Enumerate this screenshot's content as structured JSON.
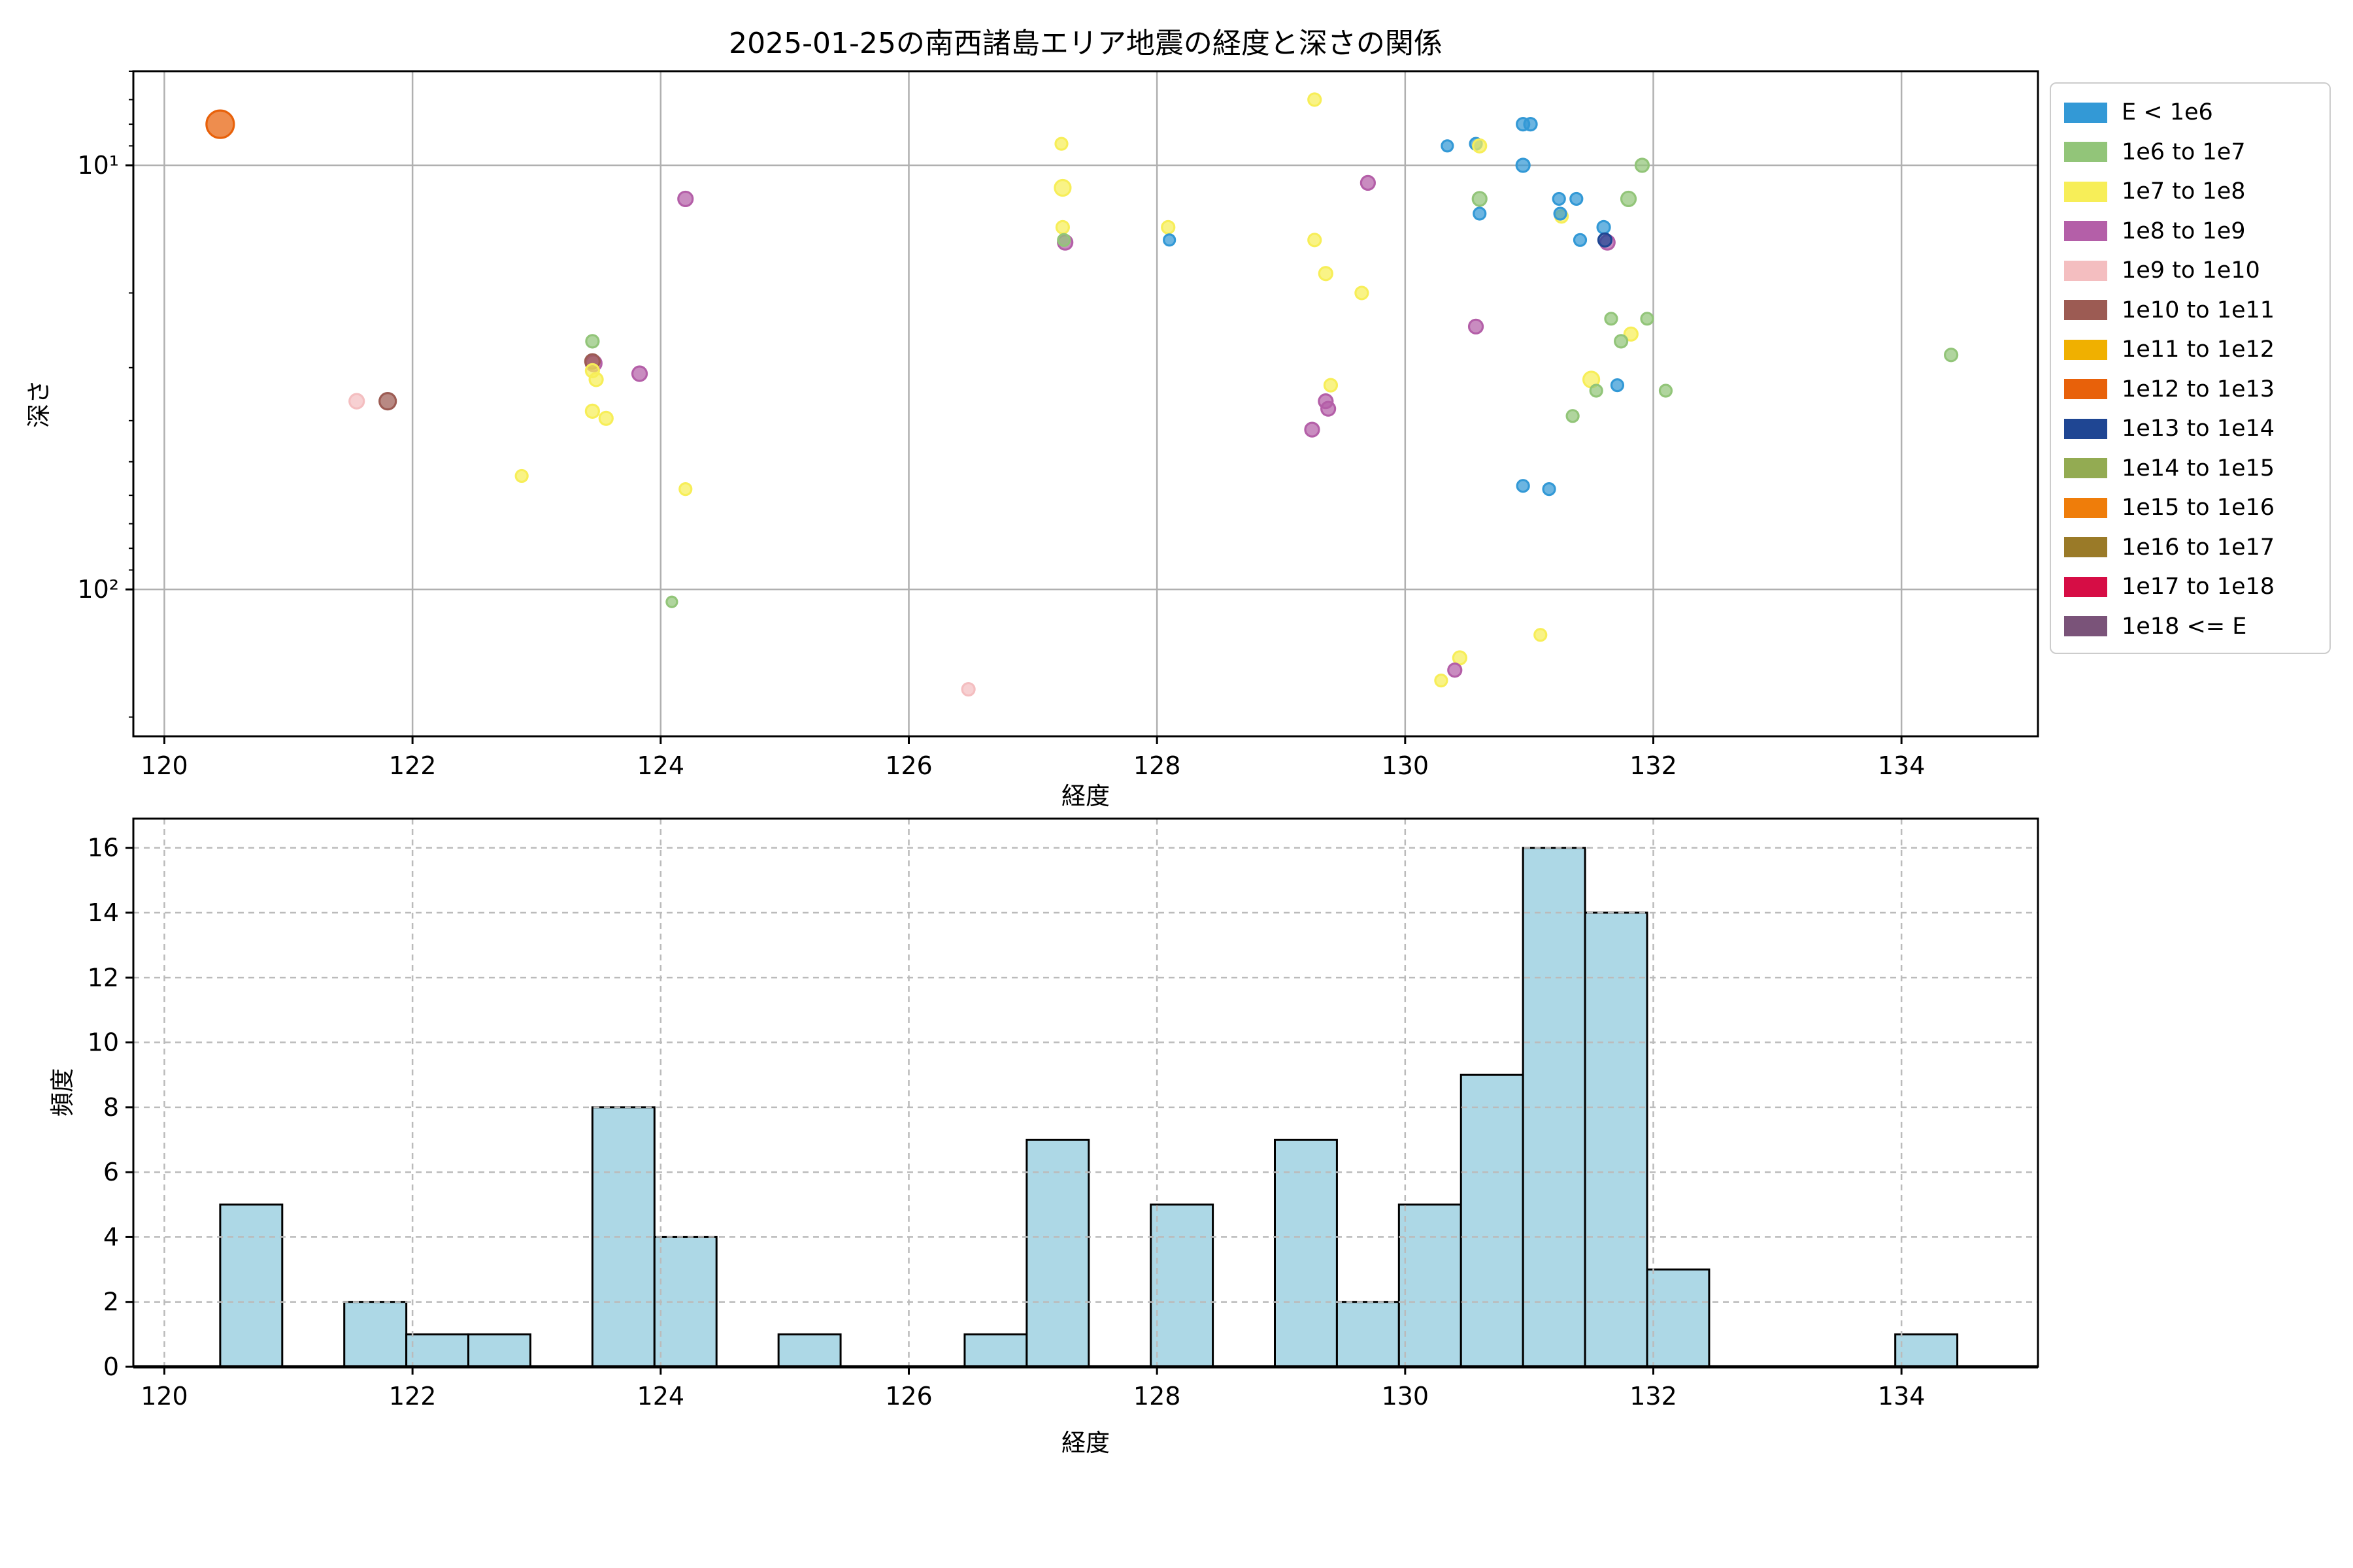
{
  "figure": {
    "title": "2025-01-25の南西諸島エリア地震の経度と深さの関係",
    "background": "#ffffff"
  },
  "legend": {
    "items": [
      {
        "label": "E < 1e6",
        "color": "#3399d6"
      },
      {
        "label": "1e6 to 1e7",
        "color": "#92c579"
      },
      {
        "label": "1e7 to 1e8",
        "color": "#f7ee58"
      },
      {
        "label": "1e8 to 1e9",
        "color": "#b45fa8"
      },
      {
        "label": "1e9 to 1e10",
        "color": "#f4bec0"
      },
      {
        "label": "1e10 to 1e11",
        "color": "#9c5b53"
      },
      {
        "label": "1e11 to 1e12",
        "color": "#f0b000"
      },
      {
        "label": "1e12 to 1e13",
        "color": "#e8610a"
      },
      {
        "label": "1e13 to 1e14",
        "color": "#1f4693"
      },
      {
        "label": "1e14 to 1e15",
        "color": "#93ab52"
      },
      {
        "label": "1e15 to 1e16",
        "color": "#ef7d0a"
      },
      {
        "label": "1e16 to 1e17",
        "color": "#9a7a28"
      },
      {
        "label": "1e17 to 1e18",
        "color": "#d60d45"
      },
      {
        "label": "1e18 <= E",
        "color": "#7a5379"
      }
    ]
  },
  "chart_data": [
    {
      "type": "scatter",
      "title": "2025-01-25の南西諸島エリア地震の経度と深さの関係",
      "xlabel": "経度",
      "ylabel": "深さ",
      "xlim": [
        119.75,
        135.1
      ],
      "ylim": [
        6.0,
        222
      ],
      "yscale": "log-inverted",
      "grid": "solid",
      "grid_color": "#b0b0b0",
      "xticks": [
        120,
        122,
        124,
        126,
        128,
        130,
        132,
        134
      ],
      "yticks": [
        {
          "v": 10,
          "label": "10¹"
        },
        {
          "v": 100,
          "label": "10²"
        }
      ],
      "yticks_minor": [
        6,
        7,
        8,
        9,
        20,
        30,
        40,
        50,
        60,
        70,
        80,
        90,
        200
      ],
      "point_fill_opacity": 0.72,
      "points": [
        {
          "x": 120.45,
          "y": 8.0,
          "cat": "1e12 to 1e13",
          "r": 21
        },
        {
          "x": 121.55,
          "y": 36,
          "cat": "1e9 to 1e10",
          "r": 11
        },
        {
          "x": 121.8,
          "y": 36,
          "cat": "1e10 to 1e11",
          "r": 12.5
        },
        {
          "x": 122.88,
          "y": 54,
          "cat": "1e7 to 1e8",
          "r": 9
        },
        {
          "x": 123.45,
          "y": 26,
          "cat": "1e6 to 1e7",
          "r": 9.5
        },
        {
          "x": 123.46,
          "y": 29.3,
          "cat": "1e8 to 1e9",
          "r": 12
        },
        {
          "x": 123.45,
          "y": 29,
          "cat": "1e10 to 1e11",
          "r": 11
        },
        {
          "x": 123.45,
          "y": 30.5,
          "cat": "1e7 to 1e8",
          "r": 10
        },
        {
          "x": 123.48,
          "y": 32,
          "cat": "1e7 to 1e8",
          "r": 10
        },
        {
          "x": 123.45,
          "y": 38,
          "cat": "1e7 to 1e8",
          "r": 10
        },
        {
          "x": 123.56,
          "y": 39.5,
          "cat": "1e7 to 1e8",
          "r": 10
        },
        {
          "x": 123.83,
          "y": 31,
          "cat": "1e8 to 1e9",
          "r": 11
        },
        {
          "x": 124.2,
          "y": 12,
          "cat": "1e8 to 1e9",
          "r": 11
        },
        {
          "x": 124.2,
          "y": 58,
          "cat": "1e7 to 1e8",
          "r": 9
        },
        {
          "x": 124.09,
          "y": 107,
          "cat": "1e6 to 1e7",
          "r": 8
        },
        {
          "x": 126.48,
          "y": 172,
          "cat": "1e9 to 1e10",
          "r": 9.5
        },
        {
          "x": 127.23,
          "y": 8.9,
          "cat": "1e7 to 1e8",
          "r": 9
        },
        {
          "x": 127.24,
          "y": 11.3,
          "cat": "1e7 to 1e8",
          "r": 12
        },
        {
          "x": 127.24,
          "y": 14,
          "cat": "1e7 to 1e8",
          "r": 9.5
        },
        {
          "x": 127.26,
          "y": 15.2,
          "cat": "1e8 to 1e9",
          "r": 11
        },
        {
          "x": 127.25,
          "y": 15,
          "cat": "1e6 to 1e7",
          "r": 9
        },
        {
          "x": 128.09,
          "y": 14,
          "cat": "1e7 to 1e8",
          "r": 9.5
        },
        {
          "x": 128.1,
          "y": 15,
          "cat": "E < 1e6",
          "r": 8.5
        },
        {
          "x": 129.27,
          "y": 7.0,
          "cat": "1e7 to 1e8",
          "r": 9.5
        },
        {
          "x": 129.27,
          "y": 15,
          "cat": "1e7 to 1e8",
          "r": 9.5
        },
        {
          "x": 129.36,
          "y": 18,
          "cat": "1e7 to 1e8",
          "r": 10
        },
        {
          "x": 129.65,
          "y": 20,
          "cat": "1e7 to 1e8",
          "r": 9.5
        },
        {
          "x": 129.7,
          "y": 11,
          "cat": "1e8 to 1e9",
          "r": 10.5
        },
        {
          "x": 129.4,
          "y": 33,
          "cat": "1e7 to 1e8",
          "r": 9.5
        },
        {
          "x": 129.36,
          "y": 36,
          "cat": "1e8 to 1e9",
          "r": 10.5
        },
        {
          "x": 129.38,
          "y": 37.5,
          "cat": "1e8 to 1e9",
          "r": 10.5
        },
        {
          "x": 129.25,
          "y": 42,
          "cat": "1e8 to 1e9",
          "r": 10.5
        },
        {
          "x": 130.34,
          "y": 9.0,
          "cat": "E < 1e6",
          "r": 8.5
        },
        {
          "x": 130.57,
          "y": 8.9,
          "cat": "E < 1e6",
          "r": 9
        },
        {
          "x": 130.6,
          "y": 9.0,
          "cat": "1e7 to 1e8",
          "r": 10
        },
        {
          "x": 130.95,
          "y": 8.0,
          "cat": "E < 1e6",
          "r": 9.5
        },
        {
          "x": 131.01,
          "y": 8.0,
          "cat": "E < 1e6",
          "r": 9.5
        },
        {
          "x": 130.95,
          "y": 10.0,
          "cat": "E < 1e6",
          "r": 10
        },
        {
          "x": 131.91,
          "y": 10.0,
          "cat": "1e6 to 1e7",
          "r": 10
        },
        {
          "x": 130.6,
          "y": 12,
          "cat": "1e6 to 1e7",
          "r": 10.5
        },
        {
          "x": 130.6,
          "y": 13,
          "cat": "E < 1e6",
          "r": 9
        },
        {
          "x": 131.24,
          "y": 12,
          "cat": "E < 1e6",
          "r": 9
        },
        {
          "x": 131.38,
          "y": 12,
          "cat": "E < 1e6",
          "r": 9
        },
        {
          "x": 131.26,
          "y": 13.2,
          "cat": "1e7 to 1e8",
          "r": 9.5
        },
        {
          "x": 131.25,
          "y": 13,
          "cat": "E < 1e6",
          "r": 9
        },
        {
          "x": 131.8,
          "y": 12,
          "cat": "1e6 to 1e7",
          "r": 11
        },
        {
          "x": 131.6,
          "y": 14,
          "cat": "E < 1e6",
          "r": 9.5
        },
        {
          "x": 131.63,
          "y": 15.2,
          "cat": "1e8 to 1e9",
          "r": 11
        },
        {
          "x": 131.61,
          "y": 15,
          "cat": "1e13 to 1e14",
          "r": 10
        },
        {
          "x": 131.41,
          "y": 15,
          "cat": "E < 1e6",
          "r": 9
        },
        {
          "x": 130.57,
          "y": 24,
          "cat": "1e8 to 1e9",
          "r": 10.5
        },
        {
          "x": 131.66,
          "y": 23,
          "cat": "1e6 to 1e7",
          "r": 9
        },
        {
          "x": 131.95,
          "y": 23,
          "cat": "1e6 to 1e7",
          "r": 9
        },
        {
          "x": 131.82,
          "y": 25,
          "cat": "1e7 to 1e8",
          "r": 10
        },
        {
          "x": 131.74,
          "y": 26,
          "cat": "1e6 to 1e7",
          "r": 9.5
        },
        {
          "x": 131.5,
          "y": 32,
          "cat": "1e7 to 1e8",
          "r": 12
        },
        {
          "x": 131.54,
          "y": 34,
          "cat": "1e6 to 1e7",
          "r": 9
        },
        {
          "x": 131.71,
          "y": 33,
          "cat": "E < 1e6",
          "r": 9
        },
        {
          "x": 132.1,
          "y": 34,
          "cat": "1e6 to 1e7",
          "r": 9
        },
        {
          "x": 131.35,
          "y": 39,
          "cat": "1e6 to 1e7",
          "r": 9
        },
        {
          "x": 130.95,
          "y": 57,
          "cat": "E < 1e6",
          "r": 9
        },
        {
          "x": 131.16,
          "y": 58,
          "cat": "E < 1e6",
          "r": 9
        },
        {
          "x": 131.09,
          "y": 128,
          "cat": "1e7 to 1e8",
          "r": 9
        },
        {
          "x": 130.44,
          "y": 145,
          "cat": "1e7 to 1e8",
          "r": 10
        },
        {
          "x": 130.4,
          "y": 155,
          "cat": "1e8 to 1e9",
          "r": 10
        },
        {
          "x": 130.29,
          "y": 164,
          "cat": "1e7 to 1e8",
          "r": 9
        },
        {
          "x": 134.4,
          "y": 28,
          "cat": "1e6 to 1e7",
          "r": 9.5
        }
      ]
    },
    {
      "type": "histogram",
      "xlabel": "経度",
      "ylabel": "頻度",
      "xlim": [
        119.75,
        135.1
      ],
      "ylim": [
        0,
        16.9
      ],
      "grid": "dashed",
      "grid_color": "#bbbbbb",
      "bar_fill": "#add8e6",
      "bar_edge": "#000000",
      "xticks": [
        120,
        122,
        124,
        126,
        128,
        130,
        132,
        134
      ],
      "yticks": [
        0,
        2,
        4,
        6,
        8,
        10,
        12,
        14,
        16
      ],
      "bins": {
        "start": 120.45,
        "width": 0.5,
        "counts": [
          5,
          0,
          2,
          1,
          1,
          0,
          8,
          4,
          0,
          1,
          0,
          0,
          1,
          7,
          0,
          5,
          0,
          7,
          2,
          5,
          9,
          16,
          14,
          3,
          0,
          0,
          0,
          1
        ]
      }
    }
  ]
}
